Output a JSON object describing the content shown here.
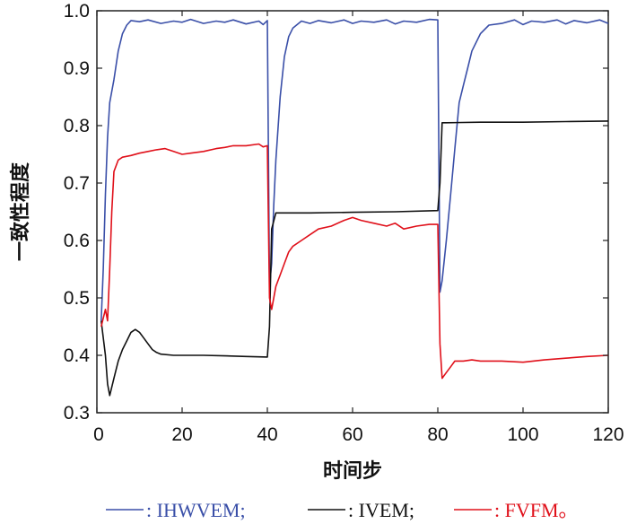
{
  "chart_data": {
    "type": "line",
    "xlabel": "时间步",
    "ylabel": "一致性程度",
    "xlim": [
      0,
      120
    ],
    "ylim": [
      0.3,
      1.0
    ],
    "xticks": [
      0,
      20,
      40,
      60,
      80,
      100,
      120
    ],
    "yticks": [
      0.3,
      0.4,
      0.5,
      0.6,
      0.7,
      0.8,
      0.9,
      1.0
    ],
    "ytick_labels": [
      "0.3",
      "0.4",
      "0.5",
      "0.6",
      "0.7",
      "0.8",
      "0.9",
      "1.0"
    ],
    "grid": false,
    "legend_position": "bottom",
    "series": [
      {
        "name": ": IHWVEM;",
        "color": "#3a4fa8",
        "x": [
          1,
          1.5,
          2,
          2.5,
          3,
          4,
          5,
          6,
          7,
          8,
          10,
          12,
          15,
          18,
          20,
          22,
          25,
          28,
          30,
          32,
          35,
          38,
          39,
          40,
          40.5,
          41,
          41.5,
          42,
          43,
          44,
          45,
          46,
          48,
          50,
          52,
          55,
          58,
          60,
          62,
          65,
          68,
          70,
          72,
          75,
          78,
          80,
          80.5,
          81,
          82,
          83,
          84,
          85,
          86,
          87,
          88,
          90,
          92,
          95,
          98,
          100,
          102,
          105,
          108,
          110,
          112,
          115,
          118,
          120
        ],
        "y": [
          0.46,
          0.55,
          0.68,
          0.78,
          0.84,
          0.88,
          0.93,
          0.96,
          0.975,
          0.983,
          0.981,
          0.984,
          0.978,
          0.982,
          0.98,
          0.985,
          0.978,
          0.982,
          0.98,
          0.984,
          0.977,
          0.982,
          0.976,
          0.983,
          0.52,
          0.56,
          0.66,
          0.74,
          0.85,
          0.92,
          0.955,
          0.97,
          0.982,
          0.978,
          0.983,
          0.979,
          0.984,
          0.978,
          0.982,
          0.98,
          0.984,
          0.977,
          0.982,
          0.98,
          0.985,
          0.984,
          0.51,
          0.53,
          0.6,
          0.68,
          0.76,
          0.84,
          0.87,
          0.9,
          0.93,
          0.96,
          0.975,
          0.978,
          0.984,
          0.976,
          0.982,
          0.98,
          0.984,
          0.977,
          0.983,
          0.979,
          0.984,
          0.978
        ]
      },
      {
        "name": ": IVEM;",
        "color": "#111111",
        "x": [
          1,
          2,
          2.5,
          3,
          4,
          5,
          6,
          7,
          8,
          9,
          10,
          11,
          12,
          13,
          14,
          15,
          18,
          20,
          25,
          30,
          35,
          40,
          40.5,
          41,
          42,
          50,
          60,
          70,
          80,
          80.5,
          81,
          82,
          90,
          100,
          110,
          120
        ],
        "y": [
          0.46,
          0.4,
          0.35,
          0.33,
          0.36,
          0.39,
          0.41,
          0.425,
          0.44,
          0.445,
          0.44,
          0.43,
          0.42,
          0.41,
          0.405,
          0.402,
          0.4,
          0.4,
          0.4,
          0.399,
          0.398,
          0.397,
          0.45,
          0.62,
          0.648,
          0.648,
          0.649,
          0.65,
          0.652,
          0.7,
          0.805,
          0.805,
          0.806,
          0.806,
          0.807,
          0.808
        ]
      },
      {
        "name": ": FVFM。",
        "color": "#e0101a",
        "x": [
          1,
          2,
          2.5,
          3,
          3.5,
          4,
          5,
          6,
          8,
          10,
          12,
          14,
          16,
          18,
          20,
          22,
          25,
          28,
          30,
          32,
          35,
          38,
          39,
          40,
          40.5,
          41,
          42,
          43,
          44,
          45,
          46,
          48,
          50,
          52,
          55,
          58,
          60,
          62,
          65,
          68,
          70,
          72,
          75,
          78,
          80,
          80.5,
          81,
          82,
          83,
          84,
          86,
          88,
          90,
          95,
          100,
          105,
          110,
          115,
          120
        ],
        "y": [
          0.45,
          0.48,
          0.46,
          0.55,
          0.65,
          0.72,
          0.74,
          0.745,
          0.748,
          0.752,
          0.755,
          0.758,
          0.76,
          0.755,
          0.75,
          0.752,
          0.755,
          0.76,
          0.762,
          0.765,
          0.765,
          0.768,
          0.763,
          0.765,
          0.5,
          0.48,
          0.52,
          0.54,
          0.56,
          0.58,
          0.59,
          0.6,
          0.61,
          0.62,
          0.625,
          0.635,
          0.64,
          0.635,
          0.63,
          0.625,
          0.63,
          0.62,
          0.625,
          0.628,
          0.628,
          0.42,
          0.36,
          0.37,
          0.38,
          0.39,
          0.39,
          0.392,
          0.39,
          0.39,
          0.388,
          0.392,
          0.395,
          0.398,
          0.4
        ]
      }
    ]
  }
}
